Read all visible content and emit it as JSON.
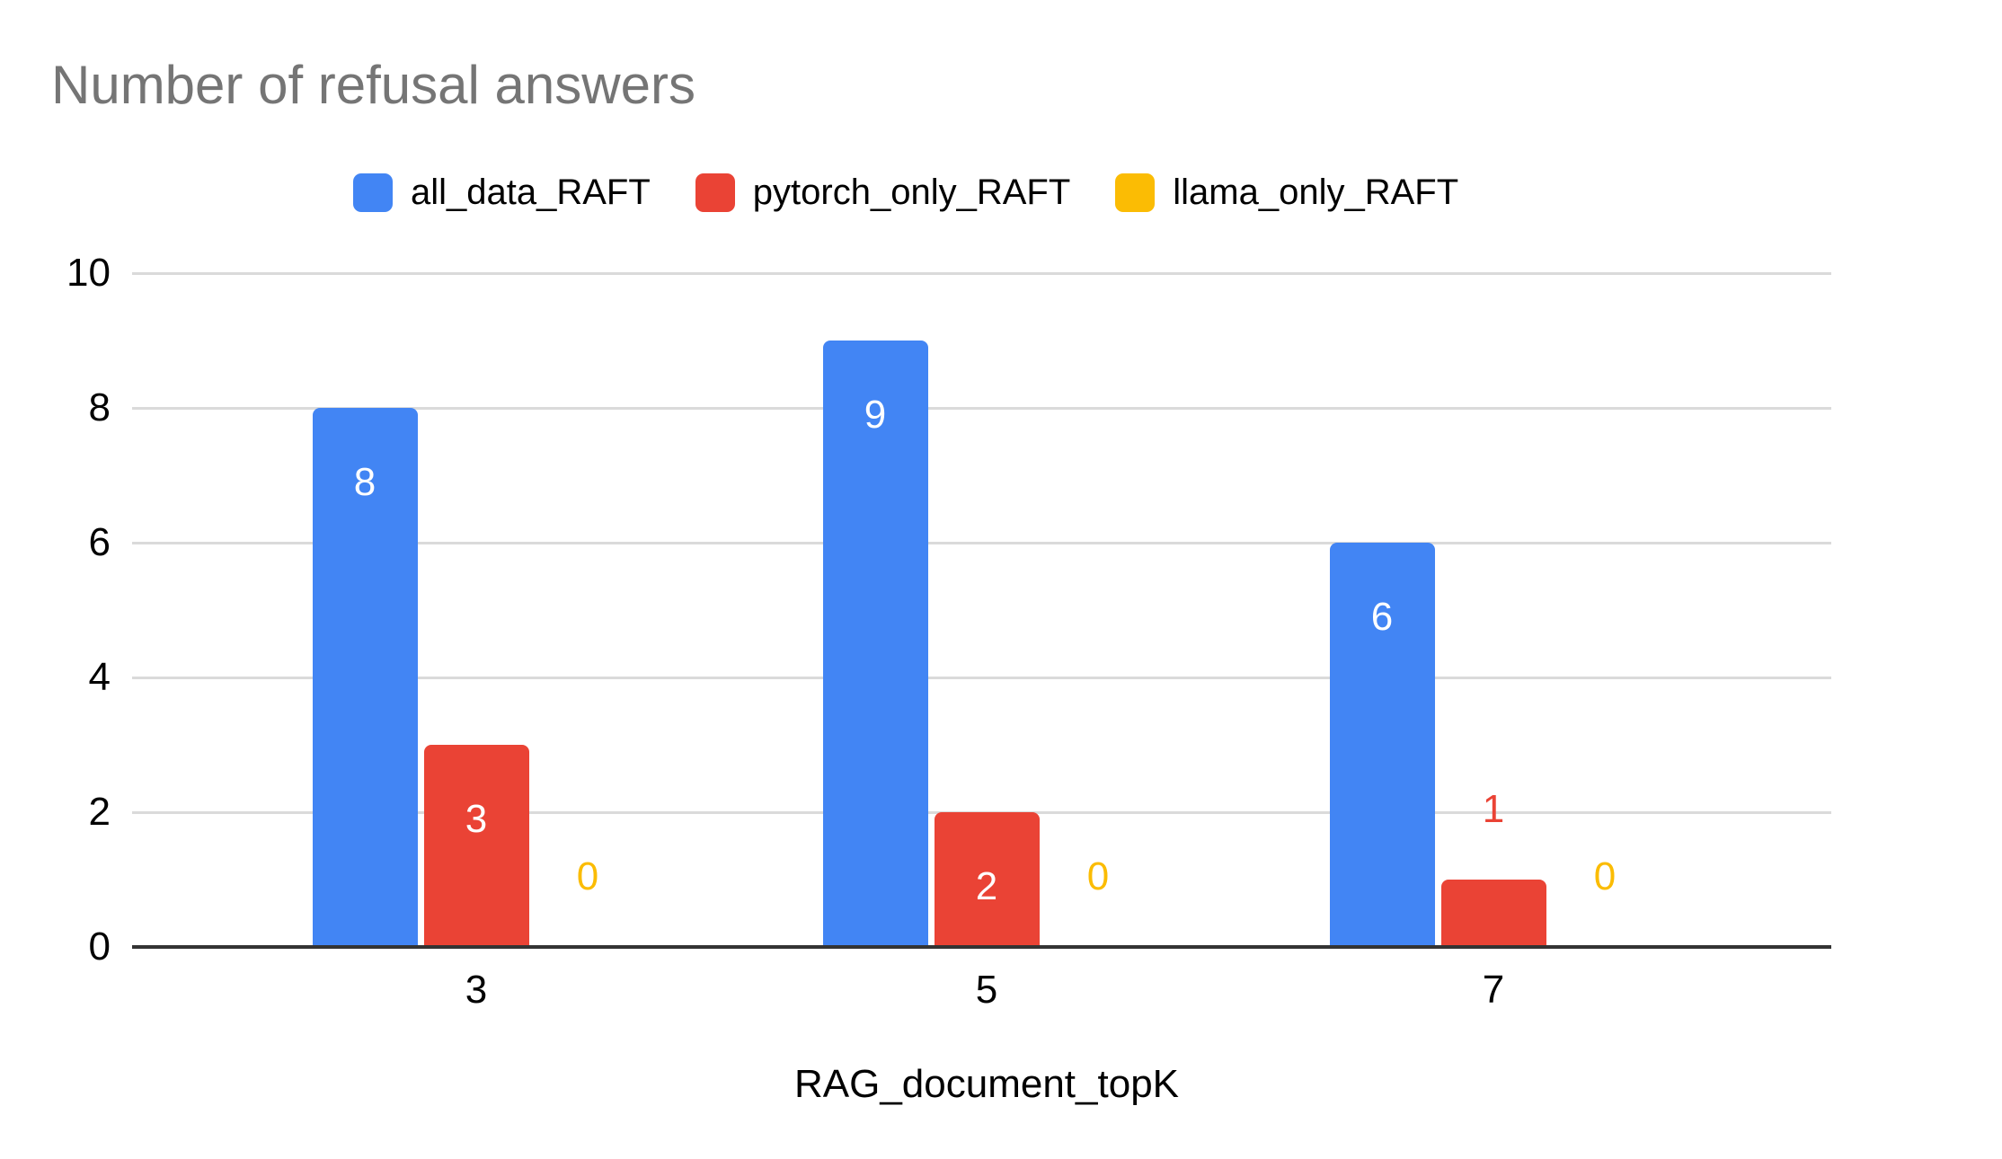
{
  "chart": {
    "title": "Number of refusal answers",
    "title_color": "#757575"
  },
  "chart_data": {
    "type": "bar",
    "title": "Number of refusal answers",
    "categories": [
      "3",
      "5",
      "7"
    ],
    "series": [
      {
        "name": "all_data_RAFT",
        "color": "#4285F4",
        "values": [
          8,
          9,
          6
        ]
      },
      {
        "name": "pytorch_only_RAFT",
        "color": "#EA4335",
        "values": [
          3,
          2,
          1
        ]
      },
      {
        "name": "llama_only_RAFT",
        "color": "#FBBC04",
        "values": [
          0,
          0,
          0
        ]
      }
    ],
    "xlabel": "RAG_document_topK",
    "ylabel": "",
    "ylim": [
      0,
      10
    ],
    "yticks": [
      0,
      2,
      4,
      6,
      8,
      10
    ],
    "grid": true,
    "legend_position": "top",
    "bar_labels": true,
    "bar_label_inside_color": "#FFFFFF",
    "gridline_color": "#DADADA",
    "baseline_color": "#333333",
    "axis_text_color": "#000000"
  }
}
